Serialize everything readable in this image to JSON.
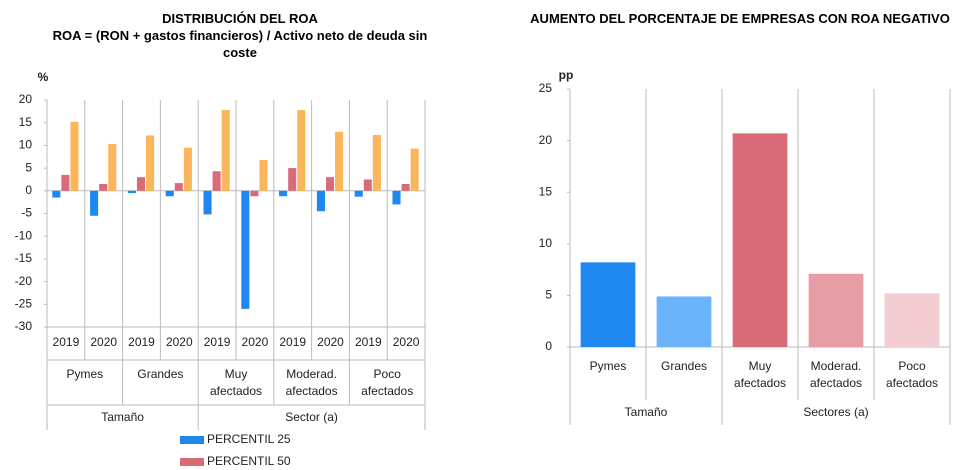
{
  "chart_data": [
    {
      "type": "bar",
      "title": "DISTRIBUCIÓN DEL ROA",
      "subtitle": "ROA = (RON + gastos financieros) / Activo neto de deuda sin coste",
      "y_unit": "%",
      "categories": [
        "2019",
        "2020",
        "2019",
        "2020",
        "2019",
        "2020",
        "2019",
        "2020",
        "2019",
        "2020"
      ],
      "groups": [
        "Pymes",
        "Grandes",
        "Muy afectados",
        "Moderad. afectados",
        "Poco afectados"
      ],
      "supergroups": [
        "Tamaño",
        "Sector (a)"
      ],
      "series": [
        {
          "name": "PERCENTIL 25",
          "color": "#1e88f0",
          "values": [
            -1.5,
            -5.5,
            -0.5,
            -1.2,
            -5.2,
            -26,
            -1.2,
            -4.5,
            -1.3,
            -3
          ]
        },
        {
          "name": "PERCENTIL 50",
          "color": "#d96b78",
          "values": [
            3.5,
            1.5,
            3,
            1.7,
            4.3,
            -1.2,
            5,
            3,
            2.5,
            1.5
          ]
        },
        {
          "color": "#fbb65c",
          "values": [
            15.2,
            10.3,
            12.2,
            9.5,
            17.8,
            6.8,
            17.8,
            13,
            12.3,
            9.3
          ]
        }
      ],
      "ylim": [
        -30,
        20
      ],
      "yticks": [
        -30,
        -25,
        -20,
        -15,
        -10,
        -5,
        0,
        5,
        10,
        15,
        20
      ]
    },
    {
      "type": "bar",
      "title": "AUMENTO DEL PORCENTAJE DE EMPRESAS CON ROA NEGATIVO",
      "y_unit": "pp",
      "categories": [
        "Pymes",
        "Grandes",
        "Muy afectados",
        "Moderad. afectados",
        "Poco afectados"
      ],
      "supergroups": [
        "Tamaño",
        "Sectores (a)"
      ],
      "values": [
        8.2,
        4.9,
        20.7,
        7.1,
        5.2
      ],
      "colors": [
        "#1e88f0",
        "#6cb4fa",
        "#d96b78",
        "#e79da5",
        "#f3cdd2"
      ],
      "ylim": [
        0,
        25
      ],
      "yticks": [
        0,
        5,
        10,
        15,
        20,
        25
      ]
    }
  ]
}
